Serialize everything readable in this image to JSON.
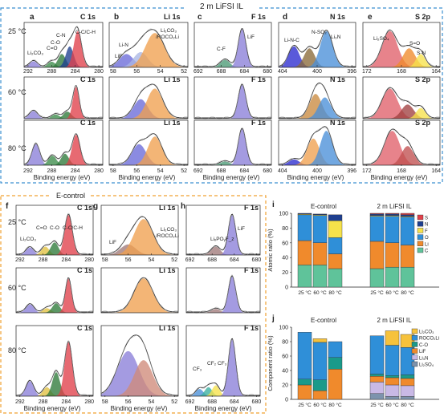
{
  "top_title": "2 m LiFSI IL",
  "bottom_title": "E-control",
  "temps": [
    "25 °C",
    "60 °C",
    "80 °C"
  ],
  "xlabel": "Binding energy (eV)",
  "top_panels": [
    {
      "letter": "a",
      "element": "C 1s",
      "ticks": [
        "292",
        "288",
        "284",
        "280"
      ]
    },
    {
      "letter": "b",
      "element": "Li 1s",
      "ticks": [
        "58",
        "56",
        "54",
        "52"
      ]
    },
    {
      "letter": "c",
      "element": "F 1s",
      "ticks": [
        "692",
        "688",
        "684",
        "680"
      ]
    },
    {
      "letter": "d",
      "element": "N 1s",
      "ticks": [
        "404",
        "400",
        "396"
      ]
    },
    {
      "letter": "e",
      "element": "S 2p",
      "ticks": [
        "172",
        "168",
        "164"
      ]
    }
  ],
  "bottom_panels": [
    {
      "letter": "f",
      "element": "C 1s",
      "ticks": [
        "292",
        "288",
        "284",
        "280"
      ]
    },
    {
      "letter": "g",
      "element": "Li 1s",
      "ticks": [
        "58",
        "56",
        "54",
        "52"
      ]
    },
    {
      "letter": "h",
      "element": "F 1s",
      "ticks": [
        "692",
        "688",
        "684",
        "680"
      ]
    }
  ],
  "annotations": {
    "a": [
      "Li₂CO₃",
      "C=O",
      "C-O",
      "C-N",
      "C-C/C-H"
    ],
    "b": [
      "Li-N",
      "LiF",
      "Li₂CO₃",
      "/ROCO₂Li"
    ],
    "c": [
      "C-F",
      "LiF"
    ],
    "d": [
      "Li-N-C",
      "N-SO₂",
      "Li₃N"
    ],
    "e": [
      "Li₂SO₄",
      "S=O",
      "S-N"
    ],
    "f": [
      "C=O",
      "C-O",
      "C-C/C-H",
      "Li₂CO₃"
    ],
    "g": [
      "LiF",
      "Li₂CO₃",
      "/ROCO₂Li"
    ],
    "h": [
      "LiₓPOᵧF_z",
      "LiF",
      "CF₃",
      "CF₂",
      "CF₃"
    ]
  },
  "chart_data": [
    {
      "panel": "i",
      "type": "bar",
      "stacked": true,
      "ylabel": "Atomic ratio (%)",
      "ylim": [
        0,
        100
      ],
      "yticks": [
        "0",
        "20",
        "40",
        "60",
        "80",
        "100"
      ],
      "group_labels": [
        "E-control",
        "2 m LiFSI IL"
      ],
      "categories": [
        "25 °C",
        "60 °C",
        "80 °C",
        "25 °C",
        "60 °C",
        "80 °C"
      ],
      "series": [
        {
          "name": "C",
          "color": "#5fc39a",
          "values": [
            30,
            30,
            25,
            25,
            27,
            27
          ]
        },
        {
          "name": "Li",
          "color": "#f08a2c",
          "values": [
            33,
            30,
            20,
            37,
            33,
            30
          ]
        },
        {
          "name": "O",
          "color": "#2f8fd8",
          "values": [
            35,
            37,
            22,
            34,
            36,
            38
          ]
        },
        {
          "name": "F",
          "color": "#f6e24a",
          "values": [
            1,
            1,
            23,
            1,
            1,
            1
          ]
        },
        {
          "name": "N",
          "color": "#1e3f8f",
          "values": [
            1,
            1,
            8,
            2,
            2,
            2
          ]
        },
        {
          "name": "S",
          "color": "#e0404a",
          "values": [
            0,
            0,
            0,
            1,
            1,
            2
          ]
        }
      ]
    },
    {
      "panel": "j",
      "type": "bar",
      "stacked": true,
      "ylabel": "Component ratio (%)",
      "ylim": [
        0,
        100
      ],
      "yticks": [
        "0",
        "20",
        "40",
        "60",
        "80",
        "100"
      ],
      "group_labels": [
        "E-control",
        "2 m LiFSI IL"
      ],
      "categories": [
        "25 °C",
        "60 °C",
        "80 °C",
        "25 °C",
        "60 °C",
        "80 °C"
      ],
      "series": [
        {
          "name": "Li₂SO₄",
          "color": "#7d93ad",
          "values": [
            0,
            0,
            0,
            8,
            4,
            4
          ]
        },
        {
          "name": "Li₃N",
          "color": "#c9b9e6",
          "values": [
            0,
            0,
            0,
            16,
            16,
            15
          ]
        },
        {
          "name": "LiF",
          "color": "#f08a2c",
          "values": [
            20,
            12,
            42,
            8,
            10,
            10
          ]
        },
        {
          "name": "C-O",
          "color": "#1a9a8a",
          "values": [
            8,
            15,
            16,
            3,
            3,
            5
          ]
        },
        {
          "name": "ROCO₂Li",
          "color": "#2f8fd8",
          "values": [
            65,
            52,
            22,
            53,
            42,
            38
          ]
        },
        {
          "name": "Li₂CO₃",
          "color": "#f6c23c",
          "values": [
            0,
            5,
            0,
            0,
            20,
            18
          ]
        }
      ]
    }
  ]
}
